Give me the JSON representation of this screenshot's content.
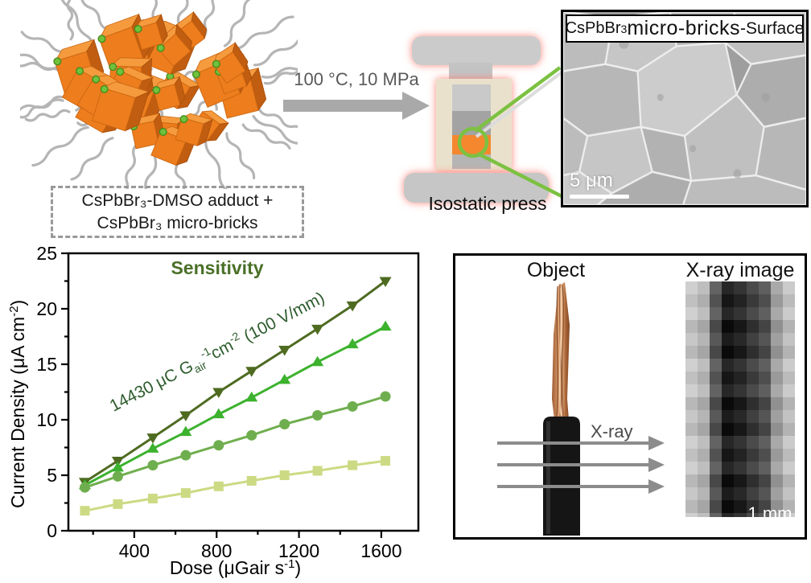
{
  "cluster": {
    "caption_line1": "CsPbBr₃-DMSO adduct +",
    "caption_line2": "CsPbBr₃ micro-bricks"
  },
  "process": {
    "conditions": "100 °C, 10 MPa",
    "press_label": "Isostatic press"
  },
  "sem": {
    "label_formula": "CsPbBr",
    "label_formula_sub": "3",
    "label_main": " micro-bricks",
    "label_suffix": "-Surface",
    "scalebar": "5 μm"
  },
  "xray_panel": {
    "object_label": "Object",
    "image_label": "X-ray image",
    "beam_label": "X-ray",
    "scalebar": "1 mm",
    "column_grays": [
      "#c9c9c9",
      "#b5b5b5",
      "#4e4e4e",
      "#0b0b0b",
      "#191919",
      "#333333",
      "#4a4a4a",
      "#9e9e9e",
      "#c4c4c4"
    ]
  },
  "chart_data": {
    "type": "line",
    "title": "Sensitivity",
    "title_color": "#4a7028",
    "annotation": {
      "seg1": "14430 μC  G",
      "sub1": "air",
      "sup1": "-1",
      "seg2": "cm",
      "sup2": "-2",
      "seg3": " (100 V/mm)",
      "color": "#2e5c2e"
    },
    "xlabel": {
      "seg1": "Dose  (μGair s",
      "sup": "-1",
      "seg2": ")"
    },
    "ylabel": {
      "seg1": "Current Density  (μA cm",
      "sup": "-2",
      "seg2": ")"
    },
    "xlim": [
      80,
      1780
    ],
    "ylim": [
      0,
      25
    ],
    "xticks": [
      400,
      800,
      1200,
      1600
    ],
    "yticks": [
      0,
      5,
      10,
      15,
      20,
      25
    ],
    "x_minor_step": 200,
    "y_minor_step": 2.5,
    "grid": false,
    "legend": "none",
    "x": [
      160,
      320,
      490,
      650,
      810,
      970,
      1130,
      1290,
      1460,
      1620
    ],
    "series": [
      {
        "marker": "triangle-down",
        "color": "#4e6b21",
        "values": [
          4.4,
          6.3,
          8.4,
          10.4,
          12.5,
          14.4,
          16.3,
          18.2,
          20.3,
          22.5
        ]
      },
      {
        "marker": "triangle-up",
        "color": "#3cb22e",
        "values": [
          4.1,
          5.7,
          7.4,
          8.9,
          10.5,
          12.0,
          13.6,
          15.2,
          16.8,
          18.4
        ]
      },
      {
        "marker": "circle",
        "color": "#6fae4e",
        "values": [
          3.9,
          4.9,
          5.9,
          6.8,
          7.7,
          8.6,
          9.6,
          10.4,
          11.2,
          12.1
        ]
      },
      {
        "marker": "square",
        "color": "#cdda84",
        "values": [
          1.8,
          2.4,
          2.9,
          3.4,
          4.0,
          4.5,
          5.0,
          5.4,
          5.9,
          6.3
        ]
      }
    ]
  }
}
